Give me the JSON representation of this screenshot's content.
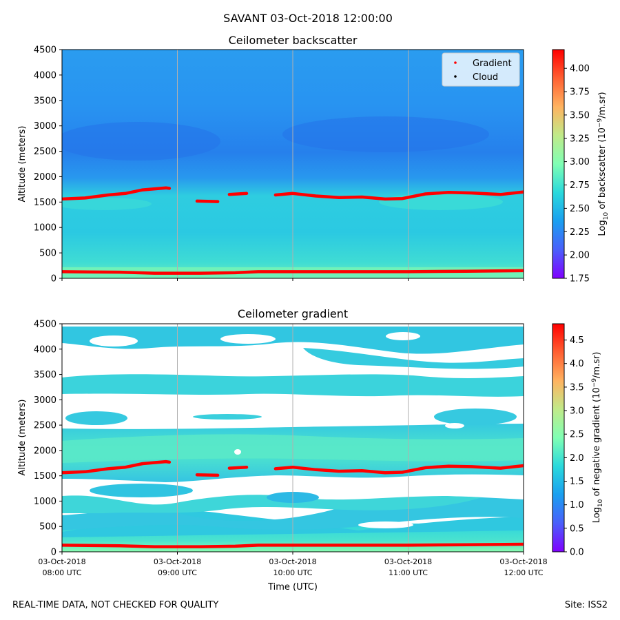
{
  "figure": {
    "suptitle": "SAVANT 03-Oct-2018 12:00:00",
    "footer_left": "REAL-TIME DATA, NOT CHECKED FOR QUALITY",
    "footer_right": "Site: ISS2"
  },
  "colors": {
    "gradient_marker": "#ff0000",
    "cloud_marker": "#000000",
    "gridline": "#b0b0b0",
    "no_data": "#ffffff"
  },
  "chart_data": [
    {
      "type": "heatmap",
      "title": "Ceilometer backscatter",
      "ylabel": "Altitude (meters)",
      "xlabel": "",
      "xlim": [
        8,
        12
      ],
      "ylim": [
        0,
        4500
      ],
      "y_ticks": [
        "0",
        "500",
        "1000",
        "1500",
        "2000",
        "2500",
        "3000",
        "3500",
        "4000",
        "4500"
      ],
      "x_ticks": [],
      "grid": "vertical",
      "legend": {
        "position": "top-right",
        "entries": [
          "Gradient",
          "Cloud"
        ]
      },
      "colorbar": {
        "label_main": "Log",
        "label_sub": "10",
        "label_mid": " of backscatter (10",
        "label_sup": "−9",
        "label_end": "/m.sr)",
        "range": [
          1.75,
          4.2
        ],
        "ticks": [
          "1.75",
          "2.00",
          "2.25",
          "2.50",
          "2.75",
          "3.00",
          "3.25",
          "3.50",
          "3.75",
          "4.00"
        ]
      },
      "series": [
        {
          "name": "Gradient (upper layer)",
          "segments": [
            [
              [
                8.0,
                1560
              ],
              [
                8.2,
                1580
              ],
              [
                8.4,
                1640
              ],
              [
                8.55,
                1670
              ],
              [
                8.7,
                1740
              ],
              [
                8.9,
                1780
              ],
              [
                8.93,
                1770
              ]
            ],
            [
              [
                9.17,
                1520
              ],
              [
                9.35,
                1510
              ]
            ],
            [
              [
                9.45,
                1650
              ],
              [
                9.6,
                1670
              ]
            ],
            [
              [
                9.85,
                1640
              ],
              [
                10.0,
                1670
              ],
              [
                10.2,
                1620
              ],
              [
                10.4,
                1590
              ],
              [
                10.6,
                1600
              ],
              [
                10.8,
                1560
              ],
              [
                10.95,
                1570
              ],
              [
                11.15,
                1660
              ],
              [
                11.35,
                1690
              ],
              [
                11.55,
                1680
              ],
              [
                11.8,
                1650
              ],
              [
                12.0,
                1700
              ]
            ]
          ]
        },
        {
          "name": "Gradient (surface layer)",
          "segments": [
            [
              [
                8.0,
                130
              ],
              [
                8.5,
                120
              ],
              [
                8.8,
                100
              ],
              [
                9.2,
                100
              ],
              [
                9.5,
                110
              ],
              [
                9.7,
                130
              ],
              [
                10.2,
                130
              ],
              [
                10.6,
                130
              ],
              [
                11.0,
                130
              ],
              [
                11.5,
                140
              ],
              [
                12.0,
                150
              ]
            ]
          ]
        }
      ]
    },
    {
      "type": "heatmap",
      "title": "Ceilometer gradient",
      "ylabel": "Altitude (meters)",
      "xlabel": "Time (UTC)",
      "xlim": [
        8,
        12
      ],
      "ylim": [
        0,
        4500
      ],
      "y_ticks": [
        "0",
        "500",
        "1000",
        "1500",
        "2000",
        "2500",
        "3000",
        "3500",
        "4000",
        "4500"
      ],
      "x_ticks": [
        {
          "date": "03-Oct-2018",
          "time": "08:00 UTC"
        },
        {
          "date": "03-Oct-2018",
          "time": "09:00 UTC"
        },
        {
          "date": "03-Oct-2018",
          "time": "10:00 UTC"
        },
        {
          "date": "03-Oct-2018",
          "time": "11:00 UTC"
        },
        {
          "date": "03-Oct-2018",
          "time": "12:00 UTC"
        }
      ],
      "grid": "vertical",
      "colorbar": {
        "label_main": "Log",
        "label_sub": "10",
        "label_mid": " of negative gradient (10",
        "label_sup": "−9",
        "label_end": "/m.sr)",
        "range": [
          0.0,
          4.85
        ],
        "ticks": [
          "0.0",
          "0.5",
          "1.0",
          "1.5",
          "2.0",
          "2.5",
          "3.0",
          "3.5",
          "4.0",
          "4.5"
        ]
      },
      "series": [
        {
          "name": "Gradient (upper layer)",
          "segments": [
            [
              [
                8.0,
                1560
              ],
              [
                8.2,
                1580
              ],
              [
                8.4,
                1640
              ],
              [
                8.55,
                1670
              ],
              [
                8.7,
                1740
              ],
              [
                8.9,
                1780
              ],
              [
                8.93,
                1770
              ]
            ],
            [
              [
                9.17,
                1520
              ],
              [
                9.35,
                1510
              ]
            ],
            [
              [
                9.45,
                1650
              ],
              [
                9.6,
                1670
              ]
            ],
            [
              [
                9.85,
                1640
              ],
              [
                10.0,
                1670
              ],
              [
                10.2,
                1620
              ],
              [
                10.4,
                1590
              ],
              [
                10.6,
                1600
              ],
              [
                10.8,
                1560
              ],
              [
                10.95,
                1570
              ],
              [
                11.15,
                1660
              ],
              [
                11.35,
                1690
              ],
              [
                11.55,
                1680
              ],
              [
                11.8,
                1650
              ],
              [
                12.0,
                1700
              ]
            ]
          ]
        },
        {
          "name": "Gradient (surface layer)",
          "segments": [
            [
              [
                8.0,
                130
              ],
              [
                8.5,
                120
              ],
              [
                8.8,
                100
              ],
              [
                9.2,
                100
              ],
              [
                9.5,
                110
              ],
              [
                9.7,
                130
              ],
              [
                10.2,
                130
              ],
              [
                10.6,
                130
              ],
              [
                11.0,
                130
              ],
              [
                11.5,
                140
              ],
              [
                12.0,
                150
              ]
            ]
          ]
        }
      ]
    }
  ]
}
